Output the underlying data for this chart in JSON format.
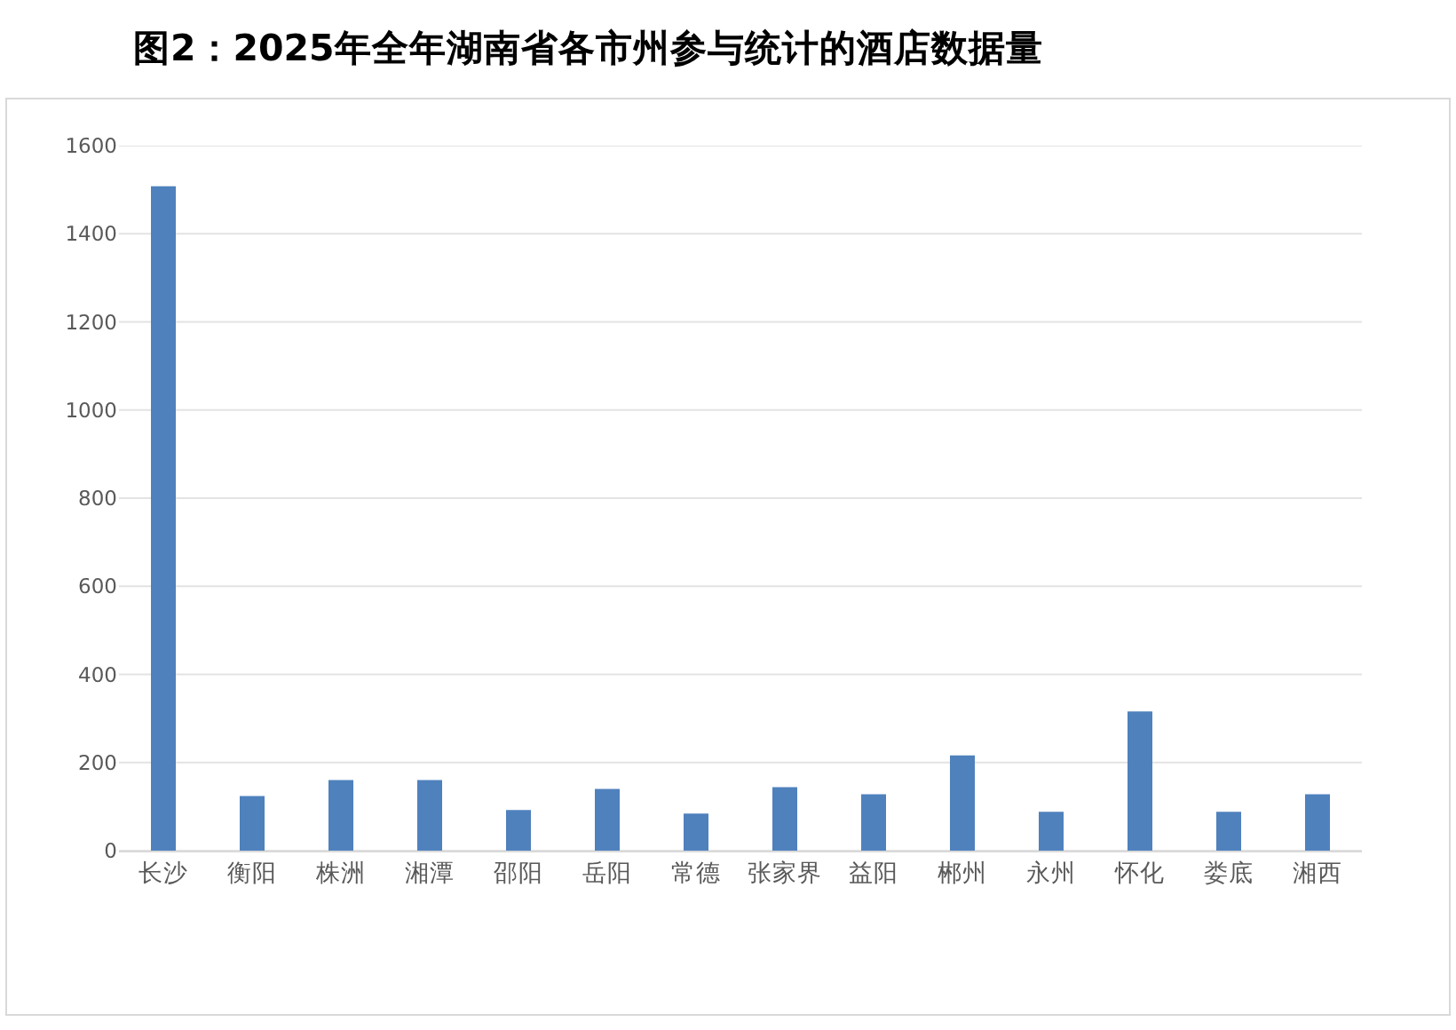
{
  "chart_data": {
    "type": "bar",
    "title": "图2：2025年全年湖南省各市州参与统计的酒店数据量",
    "categories": [
      "长沙",
      "衡阳",
      "株洲",
      "湘潭",
      "邵阳",
      "岳阳",
      "常德",
      "张家界",
      "益阳",
      "郴州",
      "永州",
      "怀化",
      "娄底",
      "湘西"
    ],
    "values": [
      1508,
      124,
      160,
      160,
      92,
      140,
      84,
      144,
      128,
      216,
      88,
      316,
      88,
      128
    ],
    "color": "#4f81bd",
    "ylim": [
      0,
      1600
    ],
    "yticks": [
      0,
      200,
      400,
      600,
      800,
      1000,
      1200,
      1400,
      1600
    ],
    "grid": "y"
  }
}
